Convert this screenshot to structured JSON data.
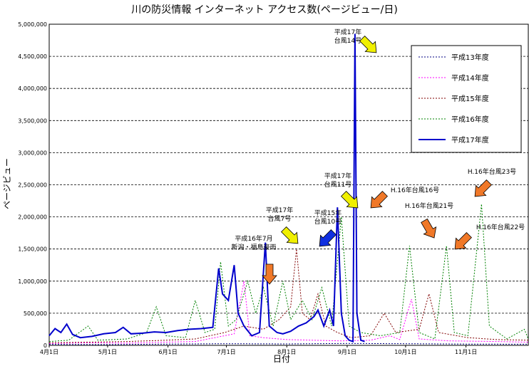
{
  "chart_data": {
    "type": "line",
    "title": "川の防災情報 インターネット アクセス数(ページビュー/日)",
    "xlabel": "日付",
    "ylabel": "ページビュー",
    "ylim": [
      0,
      5000000
    ],
    "yticks": [
      "0",
      "500,000",
      "1,000,000",
      "1,500,000",
      "2,000,000",
      "2,500,000",
      "3,000,000",
      "3,500,000",
      "4,000,000",
      "4,500,000",
      "5,000,000"
    ],
    "xlim": [
      0,
      246
    ],
    "xticks": [
      {
        "label": "4月1日",
        "day": 0
      },
      {
        "label": "5月1日",
        "day": 30
      },
      {
        "label": "6月1日",
        "day": 61
      },
      {
        "label": "7月1日",
        "day": 91
      },
      {
        "label": "8月1日",
        "day": 122
      },
      {
        "label": "9月1日",
        "day": 153
      },
      {
        "label": "10月1日",
        "day": 183
      },
      {
        "label": "11月1日",
        "day": 214
      }
    ],
    "grid": "horizontal-dashed",
    "legend_position": "top-right",
    "series": [
      {
        "name": "平成13年度",
        "color": "#000080",
        "style": "dotted",
        "points": [
          [
            0,
            15000
          ],
          [
            30,
            12000
          ],
          [
            60,
            20000
          ],
          [
            91,
            25000
          ],
          [
            122,
            22000
          ],
          [
            153,
            30000
          ],
          [
            183,
            25000
          ],
          [
            214,
            20000
          ],
          [
            246,
            18000
          ]
        ]
      },
      {
        "name": "平成14年度",
        "color": "#ff00ff",
        "style": "dotted",
        "points": [
          [
            0,
            30000
          ],
          [
            20,
            40000
          ],
          [
            40,
            35000
          ],
          [
            60,
            50000
          ],
          [
            75,
            60000
          ],
          [
            85,
            120000
          ],
          [
            95,
            180000
          ],
          [
            100,
            1000000
          ],
          [
            103,
            150000
          ],
          [
            110,
            120000
          ],
          [
            122,
            90000
          ],
          [
            135,
            80000
          ],
          [
            150,
            70000
          ],
          [
            165,
            80000
          ],
          [
            175,
            150000
          ],
          [
            180,
            90000
          ],
          [
            186,
            720000
          ],
          [
            190,
            100000
          ],
          [
            205,
            70000
          ],
          [
            230,
            60000
          ],
          [
            246,
            50000
          ]
        ]
      },
      {
        "name": "平成15年度",
        "color": "#800000",
        "style": "dotted",
        "points": [
          [
            0,
            40000
          ],
          [
            20,
            50000
          ],
          [
            40,
            60000
          ],
          [
            60,
            80000
          ],
          [
            75,
            100000
          ],
          [
            90,
            200000
          ],
          [
            100,
            300000
          ],
          [
            110,
            250000
          ],
          [
            118,
            400000
          ],
          [
            124,
            600000
          ],
          [
            127,
            1500000
          ],
          [
            130,
            500000
          ],
          [
            134,
            400000
          ],
          [
            138,
            800000
          ],
          [
            142,
            300000
          ],
          [
            148,
            200000
          ],
          [
            155,
            120000
          ],
          [
            165,
            150000
          ],
          [
            172,
            500000
          ],
          [
            178,
            200000
          ],
          [
            190,
            250000
          ],
          [
            195,
            800000
          ],
          [
            200,
            200000
          ],
          [
            215,
            120000
          ],
          [
            230,
            90000
          ],
          [
            246,
            80000
          ]
        ]
      },
      {
        "name": "平成16年度",
        "color": "#008000",
        "style": "dotted",
        "points": [
          [
            0,
            60000
          ],
          [
            10,
            80000
          ],
          [
            20,
            300000
          ],
          [
            25,
            80000
          ],
          [
            40,
            100000
          ],
          [
            50,
            200000
          ],
          [
            55,
            600000
          ],
          [
            60,
            150000
          ],
          [
            70,
            120000
          ],
          [
            75,
            700000
          ],
          [
            80,
            200000
          ],
          [
            85,
            250000
          ],
          [
            88,
            1300000
          ],
          [
            92,
            300000
          ],
          [
            96,
            400000
          ],
          [
            102,
            1000000
          ],
          [
            106,
            500000
          ],
          [
            110,
            900000
          ],
          [
            115,
            300000
          ],
          [
            120,
            1000000
          ],
          [
            124,
            400000
          ],
          [
            130,
            700000
          ],
          [
            135,
            400000
          ],
          [
            140,
            900000
          ],
          [
            145,
            300000
          ],
          [
            150,
            2000000
          ],
          [
            154,
            300000
          ],
          [
            160,
            200000
          ],
          [
            170,
            150000
          ],
          [
            180,
            200000
          ],
          [
            185,
            1550000
          ],
          [
            190,
            200000
          ],
          [
            198,
            100000
          ],
          [
            204,
            1550000
          ],
          [
            208,
            200000
          ],
          [
            215,
            150000
          ],
          [
            222,
            2200000
          ],
          [
            226,
            300000
          ],
          [
            235,
            100000
          ],
          [
            244,
            250000
          ],
          [
            246,
            100000
          ]
        ]
      },
      {
        "name": "平成17年度",
        "color": "#0000cc",
        "style": "solid",
        "points": [
          [
            0,
            150000
          ],
          [
            3,
            260000
          ],
          [
            6,
            200000
          ],
          [
            9,
            330000
          ],
          [
            12,
            170000
          ],
          [
            16,
            120000
          ],
          [
            22,
            140000
          ],
          [
            28,
            180000
          ],
          [
            34,
            200000
          ],
          [
            38,
            280000
          ],
          [
            42,
            180000
          ],
          [
            48,
            190000
          ],
          [
            54,
            210000
          ],
          [
            60,
            200000
          ],
          [
            66,
            230000
          ],
          [
            72,
            250000
          ],
          [
            78,
            260000
          ],
          [
            84,
            280000
          ],
          [
            87,
            1200000
          ],
          [
            89,
            800000
          ],
          [
            92,
            700000
          ],
          [
            95,
            1250000
          ],
          [
            97,
            500000
          ],
          [
            100,
            300000
          ],
          [
            104,
            150000
          ],
          [
            108,
            200000
          ],
          [
            111,
            1600000
          ],
          [
            113,
            300000
          ],
          [
            117,
            200000
          ],
          [
            120,
            180000
          ],
          [
            124,
            220000
          ],
          [
            128,
            300000
          ],
          [
            132,
            350000
          ],
          [
            136,
            450000
          ],
          [
            138,
            550000
          ],
          [
            141,
            300000
          ],
          [
            144,
            550000
          ],
          [
            146,
            300000
          ],
          [
            148,
            2150000
          ],
          [
            150,
            500000
          ],
          [
            152,
            150000
          ],
          [
            154,
            80000
          ],
          [
            156,
            60000
          ],
          [
            157,
            4850000
          ],
          [
            158,
            500000
          ],
          [
            160,
            80000
          ],
          [
            162,
            60000
          ]
        ]
      }
    ],
    "annotations": [
      {
        "text": "平成16年7月 新潟・福島豪雨",
        "day": 104,
        "value": 1050000,
        "arrow": "orange"
      },
      {
        "text": "平成17年 台風7号",
        "day": 111,
        "value": 1550000,
        "arrow": "yellow"
      },
      {
        "text": "平成15年 台風10号",
        "day": 127,
        "value": 1500000,
        "arrow": "blue"
      },
      {
        "text": "平成17年 台風11号",
        "day": 148,
        "value": 2150000,
        "arrow": "yellow"
      },
      {
        "text": "平成17年 台風14号",
        "day": 157,
        "value": 4600000,
        "arrow": "yellow"
      },
      {
        "text": "H.16年台風16号",
        "day": 150,
        "value": 2100000,
        "arrow": "orange"
      },
      {
        "text": "H.16年台風21号",
        "day": 185,
        "value": 1650000,
        "arrow": "orange"
      },
      {
        "text": "H.16年台風22号",
        "day": 204,
        "value": 1550000,
        "arrow": "orange"
      },
      {
        "text": "H.16年台風23号",
        "day": 222,
        "value": 2300000,
        "arrow": "orange"
      }
    ]
  }
}
